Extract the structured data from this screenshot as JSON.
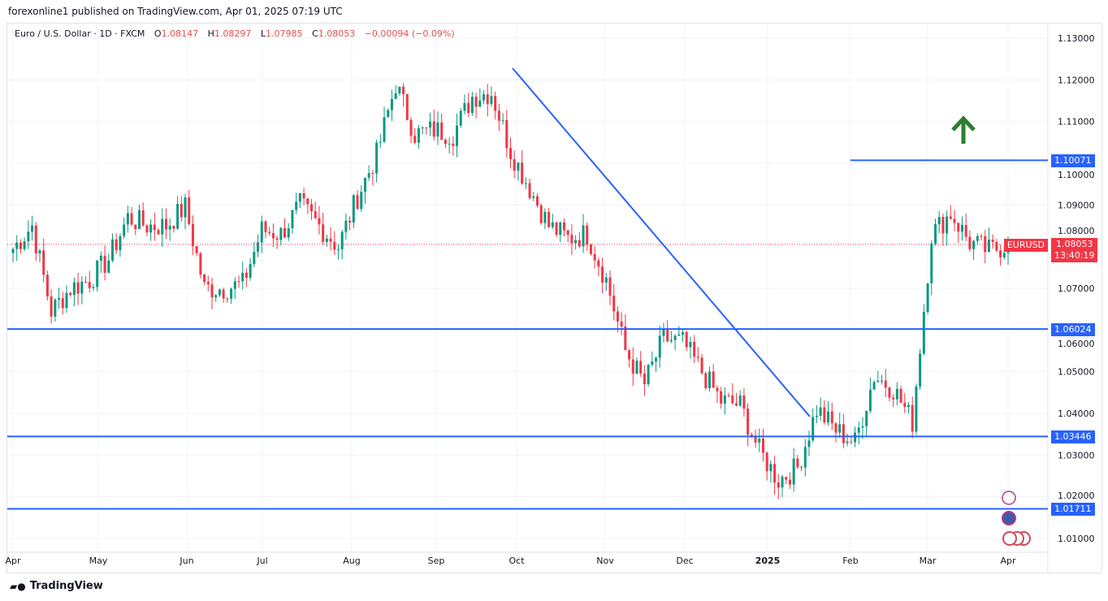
{
  "publisher": "forexonline1 published on TradingView.com, Apr 01, 2025 07:19 UTC",
  "legend": {
    "symbol": "Euro / U.S. Dollar · 1D · FXCM",
    "o_label": "O",
    "o": "1.08147",
    "h_label": "H",
    "h": "1.08297",
    "l_label": "L",
    "l": "1.07985",
    "c_label": "C",
    "c": "1.08053",
    "change": "−0.00094 (−0.09%)"
  },
  "price_tag": {
    "symbol": "EURUSD",
    "price": "1.08053",
    "countdown": "13:40:19"
  },
  "level_tags": [
    "1.10071",
    "1.06024",
    "1.03446",
    "1.01711"
  ],
  "brand": "TradingView",
  "colors": {
    "up": "#089981",
    "down": "#f23645",
    "line": "#2962ff",
    "tag": "#2962ff",
    "arrow": "#2e7d32"
  },
  "chart_data": {
    "type": "candlestick",
    "title": "Euro / U.S. Dollar · 1D · FXCM",
    "ylim": [
      1.005,
      1.133
    ],
    "yticks": [
      "1.13000",
      "1.12000",
      "1.11000",
      "1.10000",
      "1.09000",
      "1.08000",
      "1.07000",
      "1.06000",
      "1.05000",
      "1.04000",
      "1.03000",
      "1.02000",
      "1.01000"
    ],
    "xticks": [
      "Apr",
      "May",
      "Jun",
      "Jul",
      "Aug",
      "Sep",
      "Oct",
      "Nov",
      "Dec",
      "2025",
      "Feb",
      "Mar",
      "Apr"
    ],
    "weekly_closes": {
      "weeks": [
        "2024-04-01",
        "2024-04-08",
        "2024-04-15",
        "2024-04-22",
        "2024-04-29",
        "2024-05-06",
        "2024-05-13",
        "2024-05-20",
        "2024-05-27",
        "2024-06-03",
        "2024-06-10",
        "2024-06-17",
        "2024-06-24",
        "2024-07-01",
        "2024-07-08",
        "2024-07-15",
        "2024-07-22",
        "2024-07-29",
        "2024-08-05",
        "2024-08-12",
        "2024-08-19",
        "2024-08-26",
        "2024-09-02",
        "2024-09-09",
        "2024-09-16",
        "2024-09-23",
        "2024-09-30",
        "2024-10-07",
        "2024-10-14",
        "2024-10-21",
        "2024-10-28",
        "2024-11-04",
        "2024-11-11",
        "2024-11-18",
        "2024-11-25",
        "2024-12-02",
        "2024-12-09",
        "2024-12-16",
        "2024-12-23",
        "2024-12-30",
        "2025-01-06",
        "2025-01-13",
        "2025-01-20",
        "2025-01-27",
        "2025-02-03",
        "2025-02-10",
        "2025-02-17",
        "2025-02-24",
        "2025-03-03",
        "2025-03-10",
        "2025-03-17",
        "2025-03-24",
        "2025-03-31"
      ],
      "close": [
        1.0795,
        1.085,
        1.0645,
        1.07,
        1.072,
        1.077,
        1.087,
        1.085,
        1.085,
        1.0895,
        1.07,
        1.07,
        1.071,
        1.084,
        1.083,
        1.09,
        1.085,
        1.08,
        1.092,
        1.102,
        1.119,
        1.107,
        1.108,
        1.107,
        1.116,
        1.117,
        1.103,
        1.094,
        1.085,
        1.082,
        1.083,
        1.072,
        1.055,
        1.047,
        1.058,
        1.057,
        1.05,
        1.043,
        1.042,
        1.031,
        1.024,
        1.027,
        1.041,
        1.036,
        1.033,
        1.049,
        1.046,
        1.038,
        1.083,
        1.088,
        1.081,
        1.079,
        1.0805
      ]
    },
    "horizontal_levels": [
      1.10071,
      1.06024,
      1.03446,
      1.01711
    ],
    "trendline": {
      "from": [
        "2024-09-30",
        1.1225
      ],
      "to": [
        "2025-01-16",
        1.039
      ]
    },
    "current_price": 1.08053
  }
}
